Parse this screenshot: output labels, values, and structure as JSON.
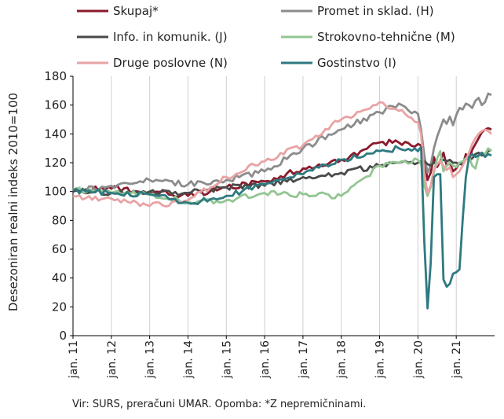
{
  "chart_data": {
    "type": "line",
    "ylabel": "Desezoniran realni indeks 2010=100",
    "xlabel": "",
    "ylim": [
      0,
      180
    ],
    "yticks": [
      0,
      20,
      40,
      60,
      80,
      100,
      120,
      140,
      160,
      180
    ],
    "x_range": [
      "2011-01",
      "2021-12"
    ],
    "x_ticks": [
      "jan. 11",
      "jan. 12",
      "jan. 13",
      "jan. 14",
      "jan. 15",
      "jan. 16",
      "jan. 17",
      "jan. 18",
      "jan. 19",
      "jan. 20",
      "jan. 21"
    ],
    "grid": "vertical at each January",
    "legend_placement": "top, two columns",
    "x": [
      "2011-01",
      "2012-01",
      "2013-01",
      "2014-01",
      "2015-01",
      "2016-01",
      "2017-01",
      "2018-01",
      "2019-01",
      "2019-07",
      "2020-01",
      "2020-02",
      "2020-03",
      "2020-04",
      "2020-05",
      "2020-06",
      "2020-07",
      "2020-08",
      "2020-09",
      "2020-10",
      "2020-11",
      "2020-12",
      "2021-01",
      "2021-02",
      "2021-03",
      "2021-04",
      "2021-05",
      "2021-06",
      "2021-07",
      "2021-08",
      "2021-09",
      "2021-10",
      "2021-11",
      "2021-12"
    ],
    "series": [
      {
        "name": "Skupaj*",
        "color": "#8b1a2b",
        "values": [
          101,
          102,
          100,
          97,
          103,
          107,
          116,
          122,
          134,
          134,
          133,
          132,
          122,
          108,
          113,
          124,
          117,
          121,
          127,
          118,
          120,
          114,
          116,
          120,
          118,
          126,
          122,
          129,
          133,
          137,
          141,
          143,
          144,
          143
        ]
      },
      {
        "name": "Promet in sklad. (H)",
        "color": "#8c8c8c",
        "values": [
          100,
          104,
          108,
          105,
          108,
          114,
          130,
          143,
          155,
          161,
          154,
          143,
          125,
          113,
          118,
          130,
          138,
          144,
          150,
          147,
          152,
          146,
          153,
          158,
          157,
          161,
          160,
          158,
          163,
          165,
          160,
          162,
          168,
          167
        ]
      },
      {
        "name": "Info. in komunik. (J)",
        "color": "#4a4a4a",
        "values": [
          100,
          99,
          100,
          99,
          103,
          104,
          110,
          113,
          118,
          120,
          120,
          121,
          121,
          119,
          118,
          120,
          119,
          121,
          122,
          121,
          122,
          120,
          120,
          119,
          120,
          124,
          122,
          123,
          126,
          127,
          125,
          126,
          128,
          129
        ]
      },
      {
        "name": "Strokovno-tehnične (M)",
        "color": "#93c592",
        "values": [
          102,
          99,
          98,
          93,
          94,
          99,
          98,
          97,
          118,
          120,
          122,
          119,
          104,
          97,
          103,
          113,
          123,
          128,
          114,
          118,
          120,
          118,
          117,
          120,
          121,
          123,
          124,
          118,
          116,
          125,
          127,
          126,
          130,
          128
        ]
      },
      {
        "name": "Druge poslovne (N)",
        "color": "#e8a3a4",
        "values": [
          97,
          95,
          90,
          94,
          110,
          121,
          132,
          150,
          162,
          156,
          148,
          140,
          112,
          99,
          104,
          115,
          119,
          121,
          118,
          115,
          117,
          110,
          112,
          114,
          118,
          122,
          127,
          133,
          137,
          140,
          142,
          143,
          142,
          140
        ]
      },
      {
        "name": "Gostinstvo (I)",
        "color": "#2e7a80",
        "values": [
          101,
          99,
          98,
          92,
          97,
          105,
          112,
          122,
          128,
          130,
          128,
          131,
          65,
          19,
          50,
          110,
          112,
          112,
          39,
          34,
          36,
          43,
          44,
          46,
          80,
          110,
          124,
          126,
          124,
          125,
          127,
          124,
          126,
          125
        ]
      }
    ]
  },
  "legend": [
    {
      "label": "Skupaj*",
      "color": "#8b1a2b"
    },
    {
      "label": "Promet in sklad. (H)",
      "color": "#8c8c8c"
    },
    {
      "label": "Info. in komunik. (J)",
      "color": "#4a4a4a"
    },
    {
      "label": "Strokovno-tehnične (M)",
      "color": "#93c592"
    },
    {
      "label": "Druge poslovne (N)",
      "color": "#e8a3a4"
    },
    {
      "label": "Gostinstvo (I)",
      "color": "#2e7a80"
    }
  ],
  "source_note": "Vir: SURS, preračuni UMAR. Opomba: *Z nepremičninami."
}
